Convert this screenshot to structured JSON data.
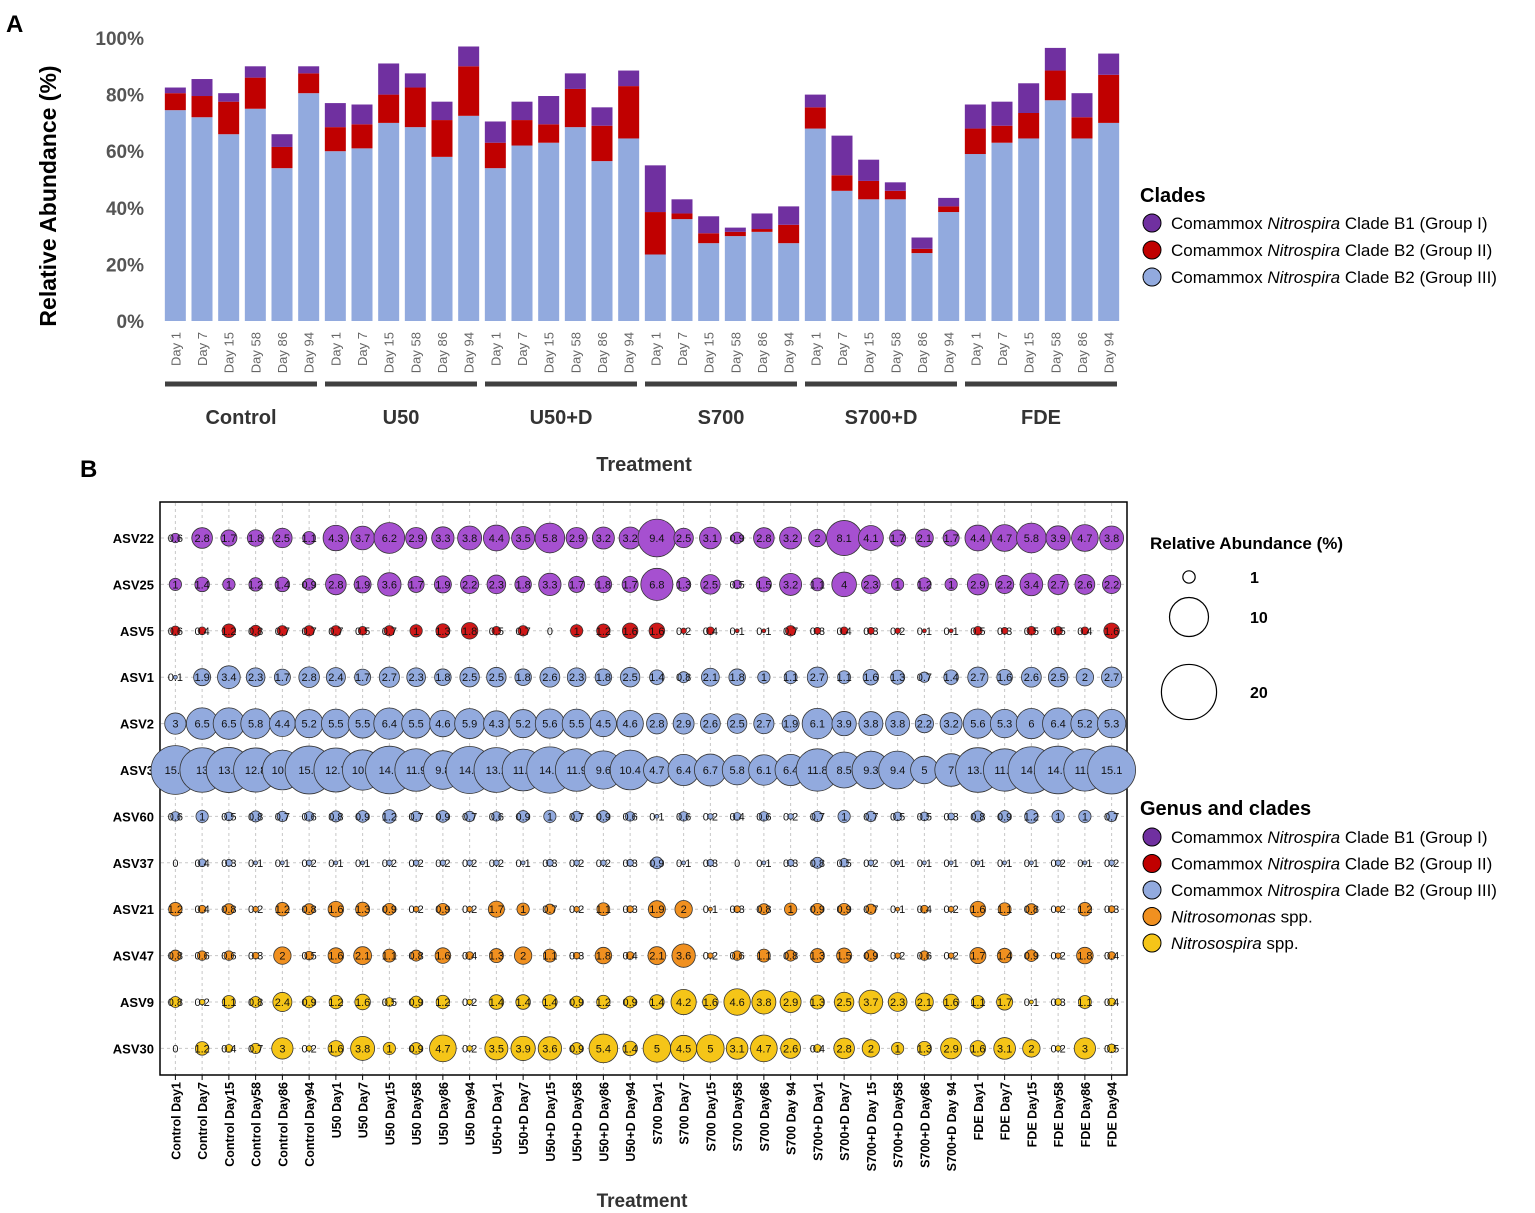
{
  "panel_a": {
    "label": "A",
    "chart_data": {
      "type": "bar",
      "stacked": true,
      "ylabel": "Relative Abundance (%)",
      "xlabel": "Treatment",
      "ylim": [
        0,
        100
      ],
      "yticks": [
        "0%",
        "20%",
        "40%",
        "60%",
        "80%",
        "100%"
      ],
      "day_labels": [
        "Day 1",
        "Day 7",
        "Day 15",
        "Day 58",
        "Day 86",
        "Day 94"
      ],
      "groups": [
        "Control",
        "U50",
        "U50+D",
        "S700",
        "S700+D",
        "FDE"
      ],
      "categories": [
        "Control Day 1",
        "Control Day 7",
        "Control Day 15",
        "Control Day 58",
        "Control Day 86",
        "Control Day 94",
        "U50 Day 1",
        "U50 Day 7",
        "U50 Day 15",
        "U50 Day 58",
        "U50 Day 86",
        "U50 Day 94",
        "U50+D Day 1",
        "U50+D Day 7",
        "U50+D Day 15",
        "U50+D Day 58",
        "U50+D Day 86",
        "U50+D Day 94",
        "S700 Day 1",
        "S700 Day 7",
        "S700 Day 15",
        "S700 Day 58",
        "S700 Day 86",
        "S700 Day 94",
        "S700+D Day 1",
        "S700+D Day 7",
        "S700+D Day 15",
        "S700+D Day 58",
        "S700+D Day 86",
        "S700+D Day 94",
        "FDE Day 1",
        "FDE Day 7",
        "FDE Day 15",
        "FDE Day 58",
        "FDE Day 86",
        "FDE Day 94"
      ],
      "series": [
        {
          "name": "Comammox Nitrospira Clade B2 (Group III)",
          "color": "#92aade",
          "values": [
            74.5,
            72,
            66,
            75,
            54,
            80.5,
            60,
            61,
            70,
            68.5,
            58,
            72.5,
            54,
            62,
            63,
            68.5,
            56.5,
            64.5,
            23.5,
            36,
            27.5,
            30,
            31.5,
            27.5,
            68,
            46,
            43,
            43,
            24,
            38.5,
            59,
            63,
            64.5,
            78,
            64.5,
            70
          ]
        },
        {
          "name": "Comammox Nitrospira Clade B2 (Group II)",
          "color": "#c00000",
          "values": [
            6,
            7.5,
            11.5,
            11,
            7.5,
            7,
            8.5,
            8.5,
            10,
            14,
            13,
            17.5,
            9,
            9,
            6.5,
            13.5,
            12.5,
            18.5,
            15,
            2,
            3.5,
            1.5,
            1,
            6.5,
            7.5,
            5.5,
            6.5,
            3,
            1.5,
            2,
            9,
            6,
            9,
            10.5,
            7.5,
            17
          ]
        },
        {
          "name": "Comammox Nitrospira Clade B1 (Group I)",
          "color": "#7030a0",
          "values": [
            2,
            6,
            3,
            4,
            4.5,
            2.5,
            8.5,
            7,
            11,
            5,
            6.5,
            7,
            7.5,
            6.5,
            10,
            5.5,
            6.5,
            5.5,
            16.5,
            5,
            6,
            1.5,
            5.5,
            6.5,
            4.5,
            14,
            7.5,
            3,
            4,
            3,
            8.5,
            8.5,
            10.5,
            8,
            8.5,
            7.5
          ]
        }
      ],
      "legend": {
        "title": "Clades",
        "items": [
          {
            "prefix": "Comammox ",
            "italic": "Nitrospira",
            "suffix": " Clade B1 (Group I)",
            "color": "#7030a0"
          },
          {
            "prefix": "Comammox ",
            "italic": "Nitrospira",
            "suffix": " Clade B2 (Group II)",
            "color": "#c00000"
          },
          {
            "prefix": "Comammox ",
            "italic": "Nitrospira",
            "suffix": " Clade B2 (Group III)",
            "color": "#92aade"
          }
        ]
      }
    }
  },
  "panel_b": {
    "label": "B",
    "chart_data": {
      "type": "scatter",
      "subtype": "bubble",
      "xlabel": "Treatment",
      "x": [
        "Control Day1",
        "Control Day7",
        "Control Day15",
        "Control Day58",
        "Control Day86",
        "Control Day94",
        "U50 Day1",
        "U50 Day7",
        "U50 Day15",
        "U50 Day58",
        "U50 Day86",
        "U50 Day94",
        "U50+D Day1",
        "U50+D Day7",
        "U50+D Day15",
        "U50+D Day58",
        "U50+D Day86",
        "U50+D Day94",
        "S700 Day1",
        "S700 Day7",
        "S700 Day15",
        "S700 Day58",
        "S700 Day86",
        "S700 Day 94",
        "S700+D Day1",
        "S700+D Day7",
        "S700+D Day 15",
        "S700+D Day58",
        "S700+D Day86",
        "S700+D Day 94",
        "FDE Day1",
        "FDE Day7",
        "FDE Day15",
        "FDE Day58",
        "FDE Day86",
        "FDE Day94"
      ],
      "rows": [
        {
          "name": "ASV22",
          "color": "#a650d0",
          "values": [
            0.6,
            2.8,
            1.7,
            1.8,
            2.5,
            1.1,
            4.3,
            3.7,
            6.2,
            2.9,
            3.3,
            3.8,
            4.4,
            3.5,
            5.8,
            2.9,
            3.2,
            3.2,
            9.4,
            2.5,
            3.1,
            0.9,
            2.8,
            3.2,
            2,
            8.1,
            4.1,
            1.7,
            2.1,
            1.7,
            4.4,
            4.7,
            5.8,
            3.9,
            4.7,
            3.8
          ]
        },
        {
          "name": "ASV25",
          "color": "#a650d0",
          "values": [
            1,
            1.4,
            1,
            1.2,
            1.4,
            0.9,
            2.8,
            1.9,
            3.6,
            1.7,
            1.9,
            2.2,
            2.3,
            1.8,
            3.3,
            1.7,
            1.8,
            1.7,
            6.8,
            1.3,
            2.5,
            0.5,
            1.5,
            3.2,
            1.1,
            4,
            2.3,
            1,
            1.2,
            1,
            2.9,
            2.2,
            3.4,
            2.7,
            2.6,
            2.2
          ]
        },
        {
          "name": "ASV5",
          "color": "#d01818",
          "values": [
            0.6,
            0.4,
            1.2,
            0.8,
            0.7,
            0.7,
            0.7,
            0.5,
            0.7,
            1,
            1.3,
            1.8,
            0.5,
            0.7,
            0,
            1,
            1.2,
            1.6,
            1.6,
            0.2,
            0.4,
            0.1,
            0.1,
            0.7,
            0.3,
            0.4,
            0.3,
            0.2,
            0.1,
            0.1,
            0.5,
            0.3,
            0.5,
            0.5,
            0.4,
            1.6
          ]
        },
        {
          "name": "ASV1",
          "color": "#92aade",
          "values": [
            0.1,
            1.9,
            3.4,
            2.3,
            1.7,
            2.8,
            2.4,
            1.7,
            2.7,
            2.3,
            1.8,
            2.5,
            2.5,
            1.8,
            2.6,
            2.3,
            1.8,
            2.5,
            1.4,
            0.8,
            2.1,
            1.8,
            1,
            1.1,
            2.7,
            1.1,
            1.6,
            1.3,
            0.7,
            1.4,
            2.7,
            1.6,
            2.6,
            2.5,
            2,
            2.7
          ]
        },
        {
          "name": "ASV2",
          "color": "#92aade",
          "values": [
            3,
            6.5,
            6.5,
            5.8,
            4.4,
            5.2,
            5.5,
            5.5,
            6.4,
            5.5,
            4.6,
            5.9,
            4.3,
            5.2,
            5.6,
            5.5,
            4.5,
            4.6,
            2.8,
            2.9,
            2.6,
            2.5,
            2.7,
            1.9,
            6.1,
            3.9,
            3.8,
            3.8,
            2.2,
            3.2,
            5.6,
            5.3,
            6,
            6.4,
            5.2,
            5.3
          ]
        },
        {
          "name": "ASV3",
          "color": "#92aade",
          "values": [
            15.6,
            13,
            13.4,
            12.8,
            10.4,
            15.1,
            12.7,
            10.7,
            14.9,
            11.9,
            9.8,
            14.5,
            13.2,
            11.5,
            14.1,
            11.9,
            9.6,
            10.4,
            4.7,
            6.4,
            6.7,
            5.8,
            6.1,
            6.4,
            11.8,
            8.5,
            9.3,
            9.4,
            5,
            7,
            13.1,
            11.8,
            14.2,
            14.9,
            11.7,
            15.1
          ]
        },
        {
          "name": "ASV60",
          "color": "#92aade",
          "values": [
            0.6,
            1,
            0.5,
            0.8,
            0.7,
            0.6,
            0.8,
            0.9,
            1.2,
            0.7,
            0.9,
            0.7,
            0.6,
            0.9,
            1,
            0.7,
            0.9,
            0.6,
            0.1,
            0.6,
            0.2,
            0.4,
            0.6,
            0.2,
            0.7,
            1,
            0.7,
            0.5,
            0.5,
            0.3,
            0.8,
            0.9,
            1.2,
            1,
            1,
            0.7
          ]
        },
        {
          "name": "ASV37",
          "color": "#92aade",
          "values": [
            0,
            0.4,
            0.3,
            0.1,
            0.1,
            0.2,
            0.1,
            0.1,
            0.2,
            0.2,
            0.2,
            0.2,
            0.2,
            0.1,
            0.3,
            0.2,
            0.2,
            0.3,
            0.9,
            0.1,
            0.3,
            0,
            0.1,
            0.3,
            0.8,
            0.5,
            0.2,
            0.1,
            0.1,
            0.1,
            0.1,
            0.1,
            0.1,
            0.2,
            0.1,
            0.2
          ]
        },
        {
          "name": "ASV21",
          "color": "#f09020",
          "values": [
            1.2,
            0.4,
            0.8,
            0.2,
            1.2,
            0.8,
            1.6,
            1.3,
            0.9,
            0.2,
            0.9,
            0.2,
            1.7,
            1,
            0.7,
            0.2,
            1.1,
            0.3,
            1.9,
            2,
            0.1,
            0.3,
            0.8,
            1,
            0.9,
            0.9,
            0.7,
            0.1,
            0.4,
            0.2,
            1.6,
            1.1,
            0.8,
            0.2,
            1.2,
            0.3
          ]
        },
        {
          "name": "ASV47",
          "color": "#f09020",
          "values": [
            0.8,
            0.6,
            0.6,
            0.3,
            2,
            0.5,
            1.6,
            2.1,
            1.1,
            0.8,
            1.6,
            0.4,
            1.3,
            2,
            1.1,
            0.3,
            1.8,
            0.4,
            2.1,
            3.6,
            0.2,
            0.6,
            1.1,
            0.8,
            1.3,
            1.5,
            0.9,
            0.2,
            0.6,
            0.2,
            1.7,
            1.4,
            0.9,
            0.2,
            1.8,
            0.4
          ]
        },
        {
          "name": "ASV9",
          "color": "#f5c518",
          "values": [
            0.8,
            0.2,
            1.1,
            0.8,
            2.4,
            0.9,
            1.2,
            1.6,
            0.5,
            0.9,
            1.2,
            0.2,
            1.4,
            1.4,
            1.4,
            0.9,
            1.2,
            0.9,
            1.4,
            4.2,
            1.6,
            4.6,
            3.8,
            2.9,
            1.3,
            2.5,
            3.7,
            2.3,
            2.1,
            1.6,
            1.1,
            1.7,
            0.1,
            0.3,
            1.1,
            0.4
          ]
        },
        {
          "name": "ASV30",
          "color": "#f5c518",
          "values": [
            0,
            1.2,
            0.4,
            0.7,
            3,
            0.2,
            1.6,
            3.8,
            1,
            0.9,
            4.7,
            0.2,
            3.5,
            3.9,
            3.6,
            0.9,
            5.4,
            1.4,
            5,
            4.5,
            5,
            3.1,
            4.7,
            2.6,
            0.4,
            2.8,
            2,
            1,
            1.3,
            2.9,
            1.6,
            3.1,
            2,
            0.2,
            3,
            0.5
          ]
        }
      ],
      "size_legend": {
        "title": "Relative Abundance (%)",
        "values": [
          1,
          10,
          20
        ]
      },
      "legend": {
        "title": "Genus and clades",
        "items": [
          {
            "prefix": "Comammox ",
            "italic": "Nitrospira",
            "suffix": " Clade B1 (Group I)",
            "color": "#7030a0"
          },
          {
            "prefix": "Comammox ",
            "italic": "Nitrospira",
            "suffix": " Clade B2 (Group II)",
            "color": "#c00000"
          },
          {
            "prefix": "Comammox ",
            "italic": "Nitrospira",
            "suffix": " Clade B2 (Group III)",
            "color": "#92aade"
          },
          {
            "prefix": "",
            "italic": "Nitrosomonas",
            "suffix": " spp.",
            "color": "#f09020"
          },
          {
            "prefix": "",
            "italic": "Nitrosospira",
            "suffix": " spp.",
            "color": "#f5c518"
          }
        ]
      }
    }
  }
}
